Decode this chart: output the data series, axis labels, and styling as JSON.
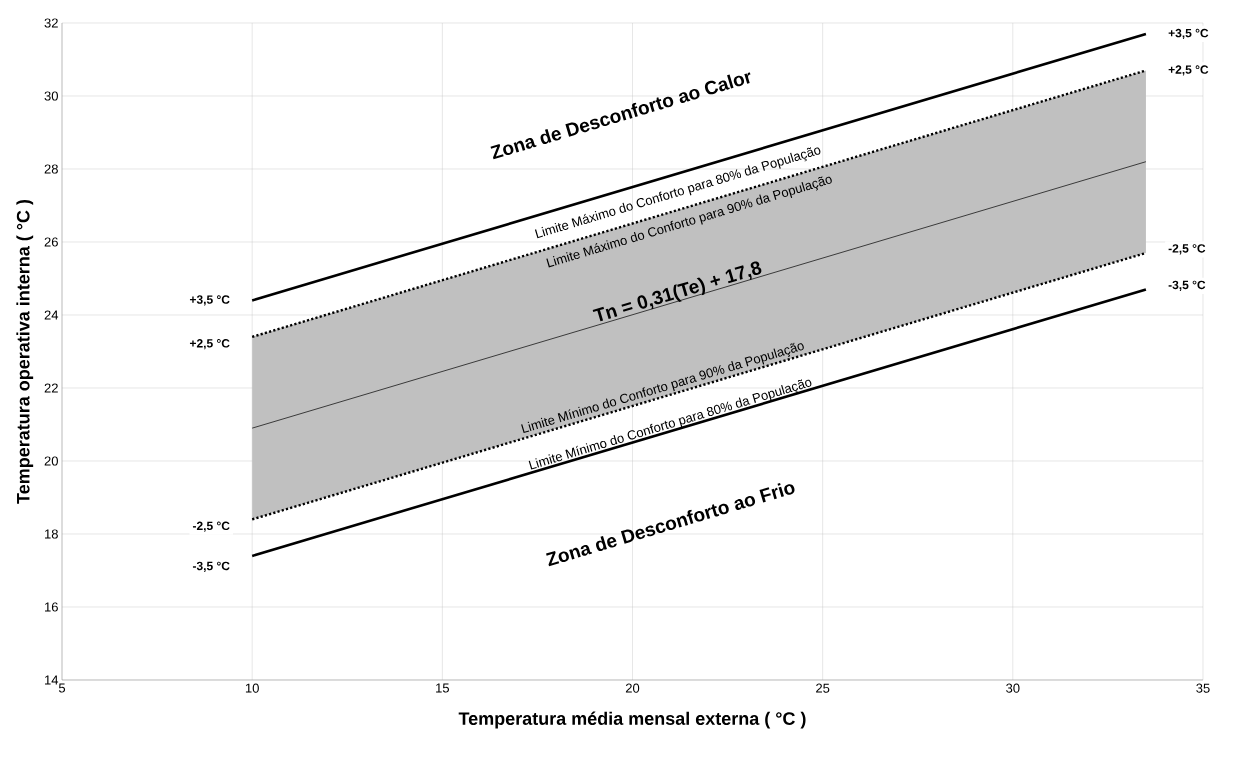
{
  "chart_data": {
    "type": "line",
    "xlabel": "Temperatura média  mensal externa ( °C )",
    "ylabel": "Temperatura operativa interna ( °C )",
    "x": [
      10,
      33.5
    ],
    "series": [
      {
        "color": "#000000",
        "line_style": "solid",
        "values": [
          24.4,
          31.7
        ]
      },
      {
        "color": "#000000",
        "line_style": "dotted",
        "values": [
          23.4,
          30.7
        ]
      },
      {
        "color": "#000000",
        "line_style": "solid",
        "values": [
          20.9,
          28.2
        ],
        "lower": [
          18.4,
          25.7
        ],
        "upper": [
          23.4,
          30.7
        ]
      },
      {
        "color": "#000000",
        "line_style": "dotted",
        "values": [
          18.4,
          25.7
        ]
      },
      {
        "color": "#000000",
        "line_style": "solid",
        "values": [
          17.4,
          24.7
        ]
      }
    ],
    "xlim": [
      5,
      35
    ],
    "ylim": [
      14,
      32
    ],
    "xticks": [
      5,
      10,
      15,
      20,
      25,
      30,
      35
    ],
    "yticks": [
      14,
      16,
      18,
      20,
      22,
      24,
      26,
      28,
      30,
      32
    ],
    "grid": true,
    "annotations": [
      "**Zona de Desconforto ao Calor**",
      "Limite Máximo do Conforto para 80% da População",
      "Limite Máximo do Conforto para 90% da População",
      "**Tn = 0,31(Te) + 17,8**",
      "Limite Mínimo do Conforto para 90% da População",
      "Limite Mínimo do Conforto para 80% da População",
      "**Zona de Desconforto ao Frio**",
      "**+3,5 °C**",
      "**+2,5 °C**",
      "**-2,5 °C**",
      "**-3,5 °C**",
      "**+3,5 °C**",
      "**+2,5 °C**",
      "**-2,5 °C**",
      "**-3,5 °C**"
    ]
  }
}
